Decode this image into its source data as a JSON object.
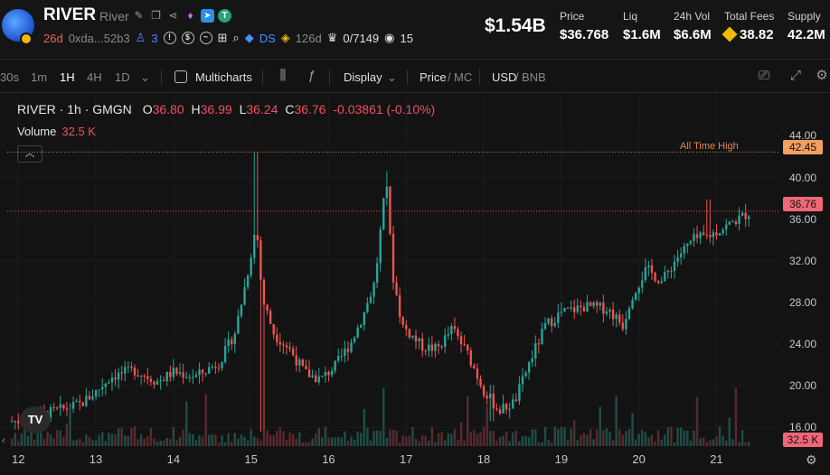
{
  "header": {
    "symbol": "RIVER",
    "name": "River",
    "age": "26d",
    "address": "0xda...52b3",
    "holders_count": "3",
    "ds_label": "DS",
    "bnb_count": "126d",
    "progress_text": "0/7149",
    "views": "15",
    "market_cap": "$1.54B",
    "stats": [
      {
        "label": "Price",
        "value": "$36.768"
      },
      {
        "label": "Liq",
        "value": "$1.6M"
      },
      {
        "label": "24h Vol",
        "value": "$6.6M"
      },
      {
        "label": "Total Fees",
        "value": "38.82"
      },
      {
        "label": "Supply",
        "value": "42.2M"
      }
    ]
  },
  "toolbar": {
    "intervals": [
      "30s",
      "1m",
      "1H",
      "4H",
      "1D"
    ],
    "selected_interval": "1H",
    "multicharts_label": "Multicharts",
    "display_label": "Display",
    "price_label": "Price",
    "mc_label": "MC",
    "usd_label": "USD",
    "bnb_label": "BNB"
  },
  "legend": {
    "title": "RIVER · 1h · GMGN",
    "o_label": "O",
    "o": "36.80",
    "h_label": "H",
    "h": "36.99",
    "l_label": "L",
    "l": "36.24",
    "c_label": "C",
    "c": "36.76",
    "change": "-0.03861 (-0.10%)",
    "volume_label": "Volume",
    "volume": "32.5 K"
  },
  "chart_data": {
    "type": "candlestick",
    "x_ticks": [
      "12",
      "13",
      "14",
      "15",
      "16",
      "17",
      "18",
      "19",
      "20",
      "21"
    ],
    "y_ticks": [
      "44.00",
      "40.00",
      "36.00",
      "32.00",
      "28.00",
      "24.00",
      "20.00",
      "16.00"
    ],
    "ylim": [
      14.2,
      45.6
    ],
    "all_time_high": 42.45,
    "all_time_high_label": "All Time High",
    "last_price": 36.76,
    "last_price_label": "36.76",
    "ath_price_label": "42.45",
    "volume_label": "32.5 K",
    "close_path": [
      [
        12.0,
        16.6
      ],
      [
        12.4,
        17.4
      ],
      [
        12.8,
        18.2
      ],
      [
        13.0,
        19.4
      ],
      [
        13.2,
        20.9
      ],
      [
        13.5,
        21.5
      ],
      [
        13.8,
        20.4
      ],
      [
        14.0,
        21.3
      ],
      [
        14.3,
        20.9
      ],
      [
        14.6,
        22.3
      ],
      [
        14.8,
        25.2
      ],
      [
        14.95,
        30.5
      ],
      [
        15.07,
        35.5
      ],
      [
        15.15,
        28.3
      ],
      [
        15.3,
        25.0
      ],
      [
        15.5,
        23.5
      ],
      [
        15.7,
        21.2
      ],
      [
        15.9,
        20.6
      ],
      [
        16.1,
        22.0
      ],
      [
        16.3,
        24.3
      ],
      [
        16.45,
        26.8
      ],
      [
        16.6,
        30.0
      ],
      [
        16.7,
        36.8
      ],
      [
        16.75,
        39.8
      ],
      [
        16.82,
        31.0
      ],
      [
        16.95,
        25.8
      ],
      [
        17.2,
        23.8
      ],
      [
        17.4,
        23.5
      ],
      [
        17.6,
        25.5
      ],
      [
        17.8,
        23.0
      ],
      [
        18.0,
        19.6
      ],
      [
        18.2,
        17.6
      ],
      [
        18.4,
        18.4
      ],
      [
        18.6,
        22.4
      ],
      [
        18.8,
        25.8
      ],
      [
        19.0,
        27.0
      ],
      [
        19.3,
        27.6
      ],
      [
        19.6,
        27.4
      ],
      [
        19.8,
        25.8
      ],
      [
        19.9,
        28.5
      ],
      [
        20.1,
        31.2
      ],
      [
        20.3,
        30.0
      ],
      [
        20.5,
        32.4
      ],
      [
        20.7,
        34.0
      ],
      [
        20.9,
        34.4
      ],
      [
        21.1,
        35.2
      ],
      [
        21.3,
        36.1
      ],
      [
        21.45,
        36.76
      ]
    ],
    "volume_scale": [
      0,
      1
    ]
  },
  "colors": {
    "up": "#26a69a",
    "down": "#ef5350",
    "ath_line": "#e0884f",
    "last_line": "#f05067",
    "bg": "#131313"
  }
}
